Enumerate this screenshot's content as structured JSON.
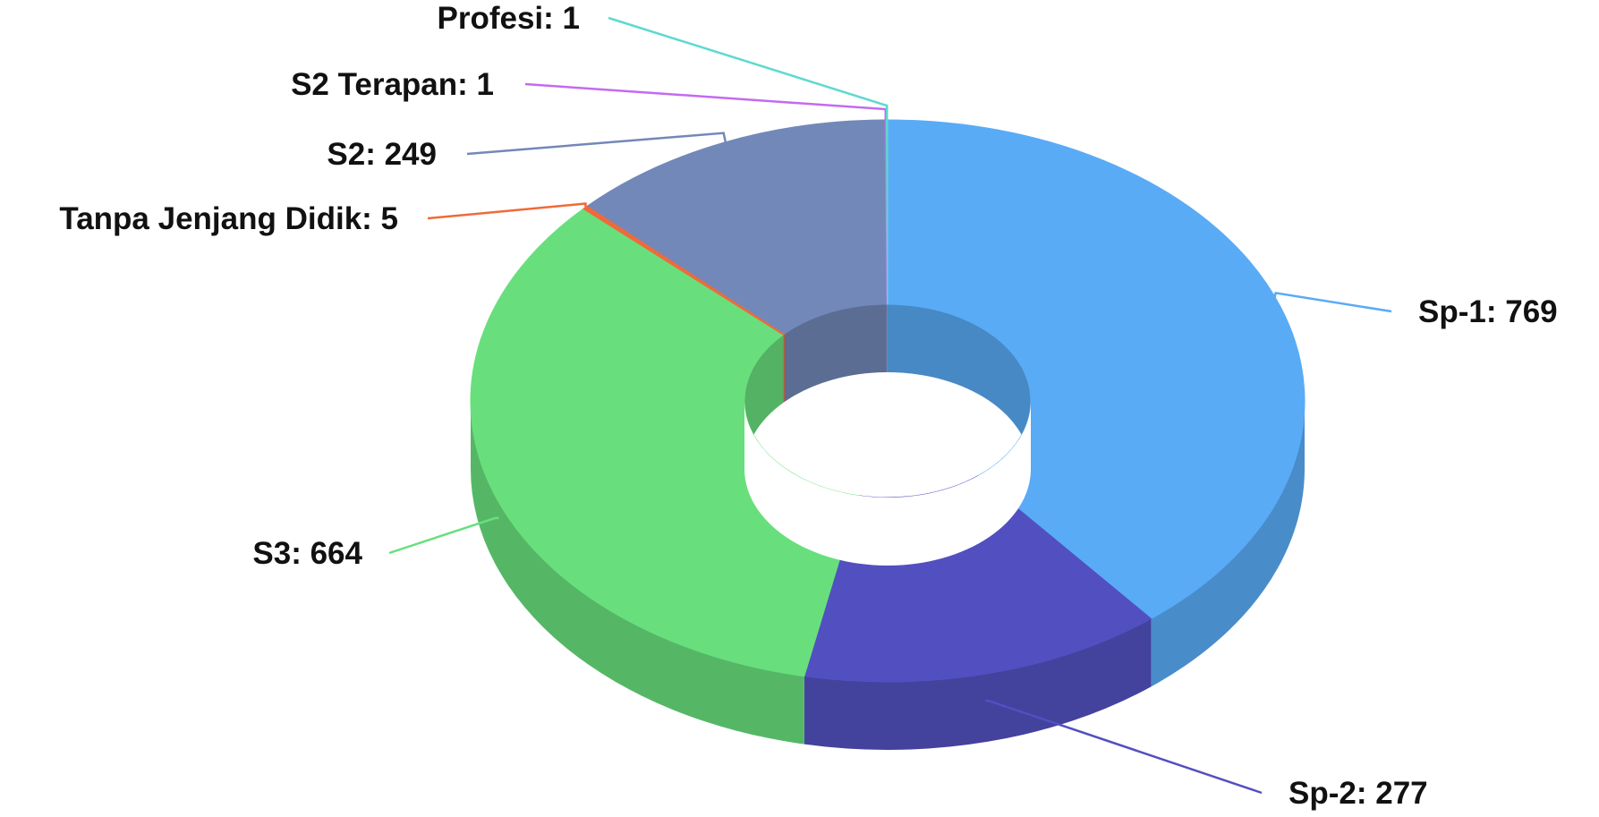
{
  "chart_data": {
    "type": "pie",
    "variant": "donut-3d",
    "title": "",
    "legend": "none",
    "label_format": "name: value",
    "series": [
      {
        "name": "Sp-1",
        "value": 769,
        "color": "#59ABF6",
        "label": "Sp-1: 769"
      },
      {
        "name": "Sp-2",
        "value": 277,
        "color": "#5250C0",
        "label": "Sp-2: 277"
      },
      {
        "name": "S3",
        "value": 664,
        "color": "#68DF7C",
        "label": "S3: 664"
      },
      {
        "name": "Tanpa Jenjang Didik",
        "value": 5,
        "color": "#EF6A3A",
        "label": "Tanpa Jenjang Didik: 5"
      },
      {
        "name": "S2",
        "value": 249,
        "color": "#7288B8",
        "label": "S2: 249"
      },
      {
        "name": "S2 Terapan",
        "value": 1,
        "color": "#C46AF0",
        "label": "S2 Terapan: 1"
      },
      {
        "name": "Profesi",
        "value": 1,
        "color": "#5ED9CF",
        "label": "Profesi: 1"
      }
    ]
  }
}
